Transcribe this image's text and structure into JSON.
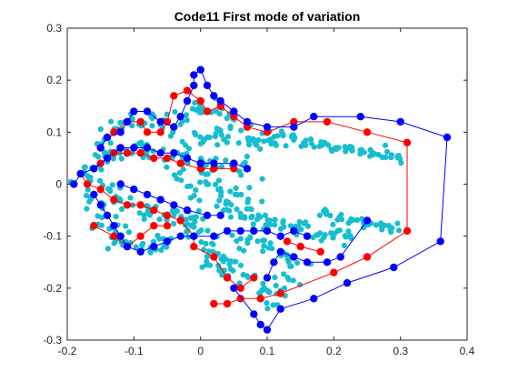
{
  "chart_data": {
    "type": "scatter",
    "title": "Code11 First mode of variation",
    "xlabel": "",
    "ylabel": "",
    "xlim": [
      -0.2,
      0.4
    ],
    "ylim": [
      -0.3,
      0.3
    ],
    "xticks": [
      -0.2,
      -0.1,
      0,
      0.1,
      0.2,
      0.3,
      0.4
    ],
    "yticks": [
      -0.3,
      -0.2,
      -0.1,
      0,
      0.1,
      0.2,
      0.3
    ],
    "xtick_labels": [
      "-0.2",
      "-0.1",
      "0",
      "0.1",
      "0.2",
      "0.3",
      "0.4"
    ],
    "ytick_labels": [
      "-0.3",
      "-0.2",
      "-0.1",
      "0",
      "0.1",
      "0.2",
      "0.3"
    ],
    "grid": false,
    "legend": "none",
    "colors": {
      "cloud": "#17becf",
      "red_shape": "#ff0000",
      "blue_shape": "#0000ff",
      "axes": "#262626"
    },
    "series": [
      {
        "role": "point-cloud",
        "color": "#17becf",
        "clusters": [
          {
            "points": [
              [
                -0.17,
                0.01
              ],
              [
                -0.16,
                0.03
              ],
              [
                -0.15,
                0.05
              ],
              [
                -0.14,
                0.08
              ],
              [
                -0.13,
                0.1
              ],
              [
                -0.11,
                0.11
              ],
              [
                -0.09,
                0.12
              ],
              [
                -0.07,
                0.12
              ],
              [
                -0.05,
                0.12
              ],
              [
                -0.03,
                0.13
              ],
              [
                -0.01,
                0.14
              ],
              [
                0.01,
                0.15
              ],
              [
                0.03,
                0.14
              ],
              [
                0.05,
                0.12
              ],
              [
                -0.15,
                -0.01
              ],
              [
                -0.16,
                -0.03
              ],
              [
                -0.15,
                -0.05
              ],
              [
                -0.14,
                -0.07
              ],
              [
                -0.13,
                -0.09
              ],
              [
                -0.12,
                -0.11
              ],
              [
                -0.1,
                -0.12
              ],
              [
                -0.08,
                -0.12
              ],
              [
                -0.06,
                -0.11
              ],
              [
                -0.12,
                0.06
              ],
              [
                -0.1,
                0.07
              ],
              [
                -0.08,
                0.07
              ],
              [
                -0.06,
                0.06
              ],
              [
                -0.04,
                0.06
              ],
              [
                -0.02,
                0.05
              ],
              [
                0.0,
                0.04
              ],
              [
                0.02,
                0.04
              ],
              [
                0.04,
                0.03
              ],
              [
                0.06,
                0.03
              ],
              [
                -0.12,
                -0.03
              ],
              [
                -0.1,
                -0.04
              ],
              [
                -0.08,
                -0.05
              ],
              [
                -0.06,
                -0.06
              ],
              [
                -0.04,
                -0.06
              ],
              [
                -0.02,
                -0.07
              ],
              [
                0.0,
                -0.06
              ],
              [
                -0.01,
                0.09
              ],
              [
                0.01,
                0.1
              ],
              [
                0.03,
                0.09
              ],
              [
                0.05,
                0.08
              ],
              [
                0.07,
                0.08
              ],
              [
                0.09,
                0.08
              ],
              [
                -0.03,
                0.02
              ],
              [
                -0.01,
                0.0
              ],
              [
                0.01,
                -0.01
              ],
              [
                0.03,
                -0.02
              ],
              [
                0.05,
                -0.02
              ],
              [
                0.07,
                -0.03
              ]
            ],
            "spread_x": 0.012,
            "spread_y": 0.01
          },
          {
            "points": [
              [
                0.1,
                0.09
              ],
              [
                0.12,
                0.09
              ],
              [
                0.14,
                0.085
              ],
              [
                0.16,
                0.08
              ],
              [
                0.18,
                0.075
              ],
              [
                0.2,
                0.07
              ],
              [
                0.22,
                0.07
              ],
              [
                0.24,
                0.065
              ],
              [
                0.26,
                0.06
              ],
              [
                0.28,
                0.055
              ],
              [
                0.3,
                0.05
              ]
            ],
            "spread_x": 0.006,
            "spread_y": 0.006
          },
          {
            "points": [
              [
                0.04,
                -0.05
              ],
              [
                0.06,
                -0.06
              ],
              [
                0.08,
                -0.07
              ],
              [
                0.1,
                -0.075
              ],
              [
                0.12,
                -0.08
              ],
              [
                0.14,
                -0.085
              ],
              [
                0.16,
                -0.09
              ],
              [
                0.18,
                -0.095
              ],
              [
                0.2,
                -0.1
              ],
              [
                0.22,
                -0.11
              ]
            ],
            "spread_x": 0.006,
            "spread_y": 0.008
          },
          {
            "points": [
              [
                0.19,
                -0.055
              ],
              [
                0.21,
                -0.065
              ],
              [
                0.23,
                -0.07
              ],
              [
                0.25,
                -0.075
              ],
              [
                0.27,
                -0.08
              ],
              [
                0.29,
                -0.085
              ]
            ],
            "spread_x": 0.005,
            "spread_y": 0.005
          },
          {
            "points": [
              [
                -0.02,
                -0.08
              ],
              [
                0.0,
                -0.1
              ],
              [
                0.02,
                -0.12
              ],
              [
                0.04,
                -0.14
              ],
              [
                0.05,
                -0.16
              ],
              [
                0.07,
                -0.18
              ],
              [
                0.09,
                -0.2
              ],
              [
                0.1,
                -0.22
              ],
              [
                0.12,
                -0.2
              ],
              [
                0.13,
                -0.18
              ],
              [
                0.14,
                -0.16
              ],
              [
                0.12,
                -0.14
              ],
              [
                0.1,
                -0.12
              ],
              [
                0.08,
                -0.1
              ],
              [
                0.06,
                -0.11
              ],
              [
                0.03,
                -0.17
              ],
              [
                0.01,
                -0.15
              ]
            ],
            "spread_x": 0.008,
            "spread_y": 0.008
          }
        ]
      },
      {
        "role": "shape",
        "color": "#ff0000",
        "segments": [
          [
            [
              -0.15,
              0.04
            ],
            [
              -0.13,
              0.06
            ],
            [
              -0.11,
              0.06
            ],
            [
              -0.09,
              0.06
            ],
            [
              -0.07,
              0.05
            ],
            [
              -0.05,
              0.05
            ],
            [
              -0.03,
              0.04
            ],
            [
              0.0,
              0.03
            ],
            [
              0.02,
              0.03
            ],
            [
              0.05,
              0.03
            ]
          ],
          [
            [
              -0.13,
              0.1
            ],
            [
              -0.11,
              0.12
            ],
            [
              -0.09,
              0.12
            ],
            [
              -0.08,
              0.1
            ],
            [
              -0.06,
              0.1
            ],
            [
              -0.05,
              0.12
            ],
            [
              -0.04,
              0.17
            ],
            [
              -0.02,
              0.18
            ],
            [
              0.0,
              0.16
            ],
            [
              0.01,
              0.14
            ],
            [
              0.03,
              0.15
            ],
            [
              0.05,
              0.13
            ],
            [
              0.07,
              0.11
            ],
            [
              0.1,
              0.1
            ],
            [
              0.14,
              0.12
            ],
            [
              0.19,
              0.12
            ],
            [
              0.25,
              0.1
            ],
            [
              0.31,
              0.08
            ],
            [
              0.31,
              -0.09
            ],
            [
              0.25,
              -0.14
            ],
            [
              0.2,
              -0.17
            ],
            [
              0.12,
              -0.21
            ],
            [
              0.09,
              -0.22
            ],
            [
              0.06,
              -0.22
            ],
            [
              0.04,
              -0.23
            ],
            [
              0.02,
              -0.23
            ]
          ],
          [
            [
              -0.18,
              0.02
            ],
            [
              -0.17,
              0.0
            ],
            [
              -0.15,
              -0.01
            ],
            [
              -0.13,
              -0.03
            ],
            [
              -0.11,
              -0.04
            ],
            [
              -0.09,
              -0.04
            ],
            [
              -0.07,
              -0.05
            ],
            [
              -0.05,
              -0.06
            ],
            [
              -0.03,
              -0.07
            ],
            [
              -0.01,
              -0.1
            ],
            [
              -0.01,
              -0.12
            ],
            [
              0.02,
              -0.14
            ],
            [
              0.04,
              -0.18
            ],
            [
              0.06,
              -0.2
            ],
            [
              0.08,
              -0.18
            ]
          ],
          [
            [
              -0.16,
              -0.08
            ],
            [
              -0.13,
              -0.1
            ],
            [
              -0.11,
              -0.12
            ],
            [
              -0.09,
              -0.1
            ],
            [
              -0.07,
              -0.08
            ],
            [
              -0.05,
              -0.08
            ]
          ],
          [
            [
              0.13,
              -0.11
            ],
            [
              0.15,
              -0.12
            ],
            [
              0.18,
              -0.13
            ]
          ]
        ]
      },
      {
        "role": "shape",
        "color": "#0000ff",
        "segments": [
          [
            [
              -0.19,
              0.0
            ],
            [
              -0.18,
              0.02
            ],
            [
              -0.16,
              0.03
            ],
            [
              -0.14,
              0.05
            ],
            [
              -0.12,
              0.07
            ],
            [
              -0.1,
              0.07
            ],
            [
              -0.08,
              0.07
            ],
            [
              -0.06,
              0.06
            ],
            [
              -0.04,
              0.06
            ],
            [
              -0.02,
              0.05
            ],
            [
              0.0,
              0.04
            ],
            [
              0.02,
              0.04
            ],
            [
              0.05,
              0.04
            ],
            [
              0.07,
              0.03
            ]
          ],
          [
            [
              -0.15,
              0.07
            ],
            [
              -0.14,
              0.09
            ],
            [
              -0.12,
              0.1
            ],
            [
              -0.11,
              0.12
            ],
            [
              -0.1,
              0.14
            ],
            [
              -0.08,
              0.14
            ],
            [
              -0.06,
              0.12
            ],
            [
              -0.04,
              0.11
            ],
            [
              -0.03,
              0.13
            ],
            [
              -0.02,
              0.16
            ],
            [
              -0.01,
              0.19
            ],
            [
              -0.01,
              0.21
            ],
            [
              0.0,
              0.22
            ],
            [
              0.01,
              0.19
            ],
            [
              0.02,
              0.17
            ],
            [
              0.03,
              0.16
            ],
            [
              0.05,
              0.14
            ],
            [
              0.07,
              0.12
            ],
            [
              0.1,
              0.11
            ],
            [
              0.14,
              0.11
            ],
            [
              0.17,
              0.13
            ],
            [
              0.24,
              0.13
            ],
            [
              0.3,
              0.12
            ],
            [
              0.37,
              0.09
            ],
            [
              0.36,
              -0.11
            ],
            [
              0.29,
              -0.16
            ],
            [
              0.22,
              -0.19
            ],
            [
              0.17,
              -0.22
            ],
            [
              0.12,
              -0.24
            ],
            [
              0.1,
              -0.28
            ],
            [
              0.09,
              -0.27
            ],
            [
              0.08,
              -0.25
            ],
            [
              0.05,
              -0.2
            ]
          ],
          [
            [
              -0.16,
              -0.02
            ],
            [
              -0.15,
              -0.04
            ],
            [
              -0.14,
              -0.06
            ],
            [
              -0.13,
              -0.08
            ],
            [
              -0.12,
              -0.1
            ],
            [
              -0.11,
              -0.12
            ],
            [
              -0.09,
              -0.13
            ],
            [
              -0.07,
              -0.12
            ],
            [
              -0.05,
              -0.11
            ],
            [
              -0.03,
              -0.1
            ],
            [
              -0.01,
              -0.1
            ],
            [
              0.02,
              -0.1
            ],
            [
              0.04,
              -0.09
            ],
            [
              0.06,
              -0.09
            ],
            [
              0.08,
              -0.09
            ],
            [
              0.1,
              -0.09
            ],
            [
              0.12,
              -0.1
            ],
            [
              0.14,
              -0.09
            ],
            [
              0.16,
              -0.1
            ]
          ],
          [
            [
              -0.12,
              0.0
            ],
            [
              -0.1,
              -0.01
            ],
            [
              -0.08,
              -0.02
            ],
            [
              -0.06,
              -0.03
            ],
            [
              -0.04,
              -0.04
            ],
            [
              -0.02,
              -0.05
            ],
            [
              0.01,
              -0.06
            ],
            [
              0.03,
              -0.06
            ]
          ],
          [
            [
              0.1,
              -0.18
            ],
            [
              0.11,
              -0.15
            ],
            [
              0.12,
              -0.13
            ],
            [
              0.14,
              -0.14
            ],
            [
              0.16,
              -0.15
            ],
            [
              0.19,
              -0.15
            ],
            [
              0.21,
              -0.14
            ],
            [
              0.25,
              -0.07
            ]
          ]
        ]
      }
    ]
  }
}
